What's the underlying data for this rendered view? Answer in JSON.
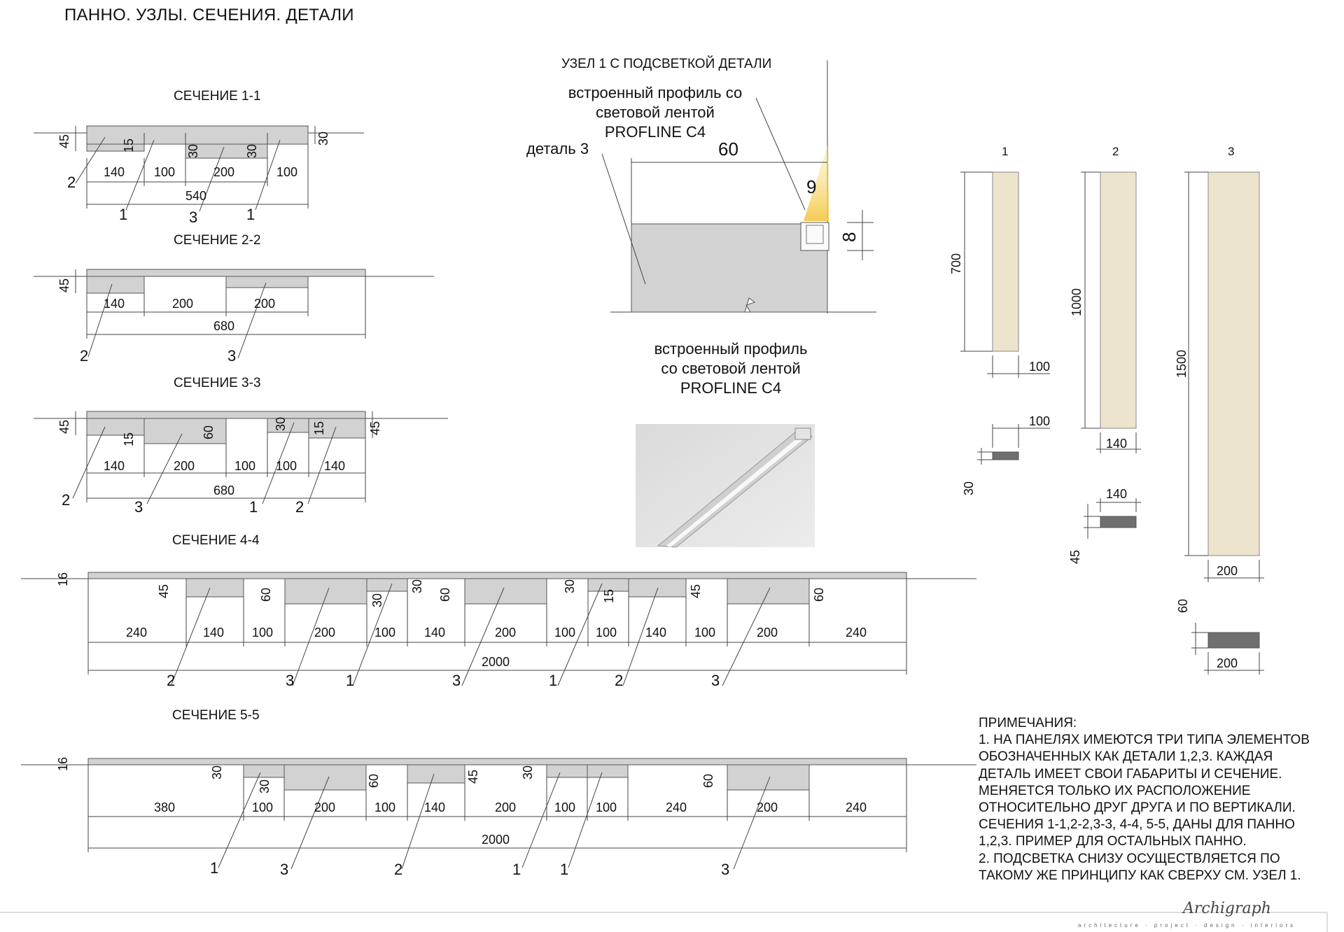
{
  "sheet_title": "ПАННО. УЗЛЫ. СЕЧЕНИЯ. ДЕТАЛИ",
  "colors": {
    "panel": "#d2d2d2",
    "panel_stroke": "#555555",
    "wood": "#ece4cc",
    "profile": "#6f6f6f",
    "led_glow": "#f6d679",
    "line": "#333333"
  },
  "sections": [
    {
      "title": "СЕЧЕНИЕ 1-1",
      "dims": [
        "45",
        "15",
        "30",
        "30",
        "30",
        "140",
        "100",
        "200",
        "100",
        "540"
      ],
      "callouts": [
        "2",
        "1",
        "3",
        "1"
      ]
    },
    {
      "title": "СЕЧЕНИЕ 2-2",
      "dims": [
        "45",
        "140",
        "200",
        "200",
        "680"
      ],
      "callouts": [
        "2",
        "3"
      ]
    },
    {
      "title": "СЕЧЕНИЕ 3-3",
      "dims": [
        "45",
        "15",
        "60",
        "30",
        "15",
        "45",
        "140",
        "200",
        "100",
        "100",
        "140",
        "680"
      ],
      "callouts": [
        "2",
        "3",
        "1",
        "2"
      ]
    },
    {
      "title": "СЕЧЕНИЕ 4-4",
      "dims": [
        "16",
        "45",
        "60",
        "30",
        "30",
        "60",
        "30",
        "15",
        "45",
        "60",
        "240",
        "140",
        "100",
        "200",
        "100",
        "140",
        "200",
        "100",
        "100",
        "140",
        "100",
        "200",
        "240",
        "2000"
      ],
      "callouts": [
        "2",
        "3",
        "1",
        "3",
        "1",
        "2",
        "3"
      ]
    },
    {
      "title": "СЕЧЕНИЕ 5-5",
      "dims": [
        "16",
        "30",
        "30",
        "60",
        "45",
        "30",
        "60",
        "380",
        "100",
        "200",
        "100",
        "140",
        "200",
        "100",
        "100",
        "240",
        "200",
        "240",
        "2000"
      ],
      "callouts": [
        "1",
        "3",
        "2",
        "1",
        "1",
        "3"
      ]
    }
  ],
  "node": {
    "title": "УЗЕЛ 1 С ПОДСВЕТКОЙ ДЕТАЛИ",
    "profile_label_top": [
      "встроенный профиль со",
      "световой лентой",
      "PROFLINE C4"
    ],
    "detail_label": "деталь 3",
    "dims": [
      "60",
      "9",
      "8"
    ],
    "profile_label_bottom": [
      "встроенный профиль",
      "со световой лентой",
      "PROFLINE C4"
    ]
  },
  "details": [
    {
      "number": "1",
      "height": "700",
      "width": "100",
      "section_width": "100",
      "thickness": "30"
    },
    {
      "number": "2",
      "height": "1000",
      "width": "140",
      "section_width": "140",
      "thickness": "45"
    },
    {
      "number": "3",
      "height": "1500",
      "width": "200",
      "section_width": "200",
      "thickness": "60"
    }
  ],
  "notes": {
    "lines": [
      "ПРИМЕЧАНИЯ:",
      "1. НА ПАНЕЛЯХ ИМЕЮТСЯ ТРИ ТИПА ЭЛЕМЕНТОВ",
      "ОБОЗНАЧЕННЫХ КАК ДЕТАЛИ 1,2,3. КАЖДАЯ",
      "ДЕТАЛЬ ИМЕЕТ СВОИ ГАБАРИТЫ И СЕЧЕНИЕ.",
      "МЕНЯЕТСЯ ТОЛЬКО ИХ РАСПОЛОЖЕНИЕ",
      "ОТНОСИТЕЛЬНО ДРУГ ДРУГА И ПО ВЕРТИКАЛИ.",
      "СЕЧЕНИЯ 1-1,2-2,3-3, 4-4, 5-5, ДАНЫ ДЛЯ ПАННО",
      "1,2,3. ПРИМЕР ДЛЯ ОСТАЛЬНЫХ ПАННО.",
      "2. ПОДСВЕТКА СНИЗУ ОСУЩЕСТВЛЯЕТСЯ ПО",
      "ТАКОМУ ЖЕ ПРИНЦИПУ КАК СВЕРХУ СМ. УЗЕЛ 1."
    ]
  },
  "signature": {
    "text": "Archigraph",
    "sub": "architecture · project · design · interiors"
  }
}
